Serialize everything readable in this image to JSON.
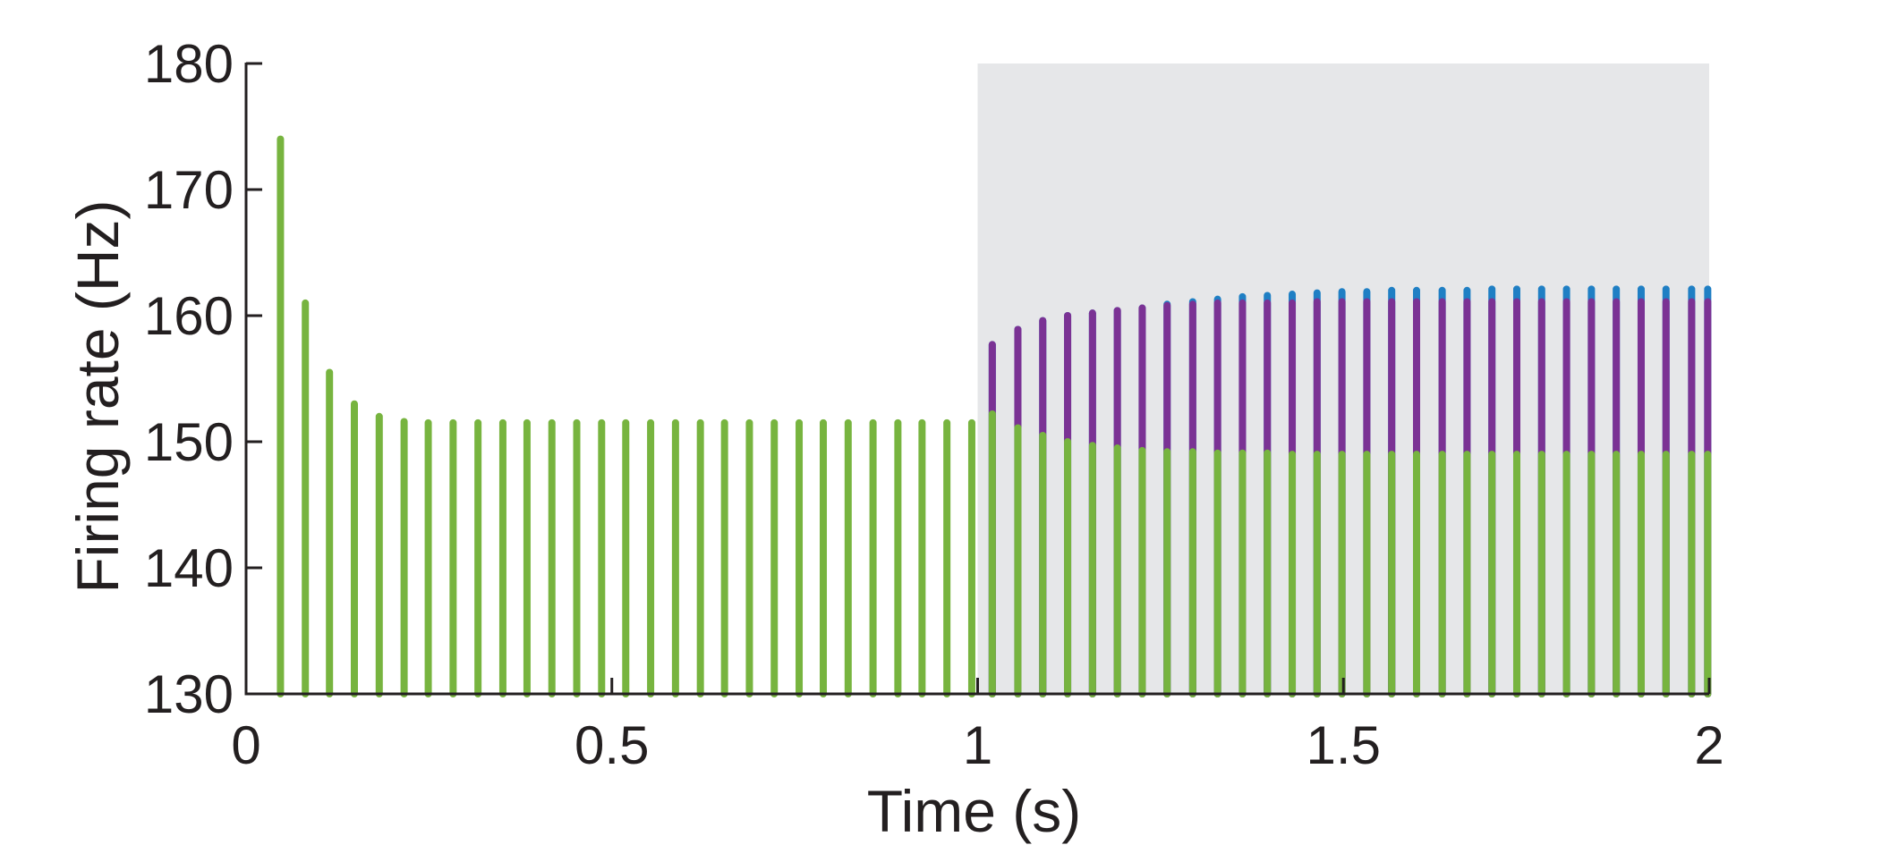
{
  "chart_data": {
    "type": "bar",
    "title": "",
    "xlabel": "Time (s)",
    "ylabel": "Firing rate (Hz)",
    "xlim": [
      0,
      2
    ],
    "ylim": [
      130,
      180
    ],
    "xticks": [
      "0",
      "0.5",
      "1",
      "1.5",
      "2"
    ],
    "yticks": [
      "130",
      "140",
      "150",
      "160",
      "170",
      "180"
    ],
    "grid": false,
    "legend": "none",
    "shaded_region": {
      "x_start": 1,
      "x_end": 2,
      "color": "#e6e7e9"
    },
    "colors": {
      "green": "#77b43f",
      "purple": "#7b3294",
      "blue": "#1f7fc4"
    },
    "phase1": {
      "x": [
        0.047,
        0.081,
        0.114,
        0.148,
        0.182,
        0.216,
        0.249,
        0.283,
        0.317,
        0.351,
        0.384,
        0.418,
        0.452,
        0.486,
        0.519,
        0.553,
        0.587,
        0.621,
        0.654,
        0.688,
        0.722,
        0.756,
        0.789,
        0.823,
        0.857,
        0.891,
        0.924,
        0.958,
        0.992
      ],
      "green": [
        174,
        161,
        155.5,
        153,
        152,
        151.6,
        151.5,
        151.5,
        151.5,
        151.5,
        151.5,
        151.5,
        151.5,
        151.5,
        151.5,
        151.5,
        151.5,
        151.5,
        151.5,
        151.5,
        151.5,
        151.5,
        151.5,
        151.5,
        151.5,
        151.5,
        151.5,
        151.5,
        151.5
      ]
    },
    "phase2": {
      "x": [
        1.02,
        1.055,
        1.089,
        1.123,
        1.157,
        1.191,
        1.225,
        1.259,
        1.294,
        1.328,
        1.362,
        1.396,
        1.43,
        1.464,
        1.498,
        1.532,
        1.566,
        1.6,
        1.635,
        1.669,
        1.703,
        1.737,
        1.771,
        1.805,
        1.839,
        1.873,
        1.907,
        1.941,
        1.976,
        1.998
      ],
      "green": [
        152.2,
        151.1,
        150.5,
        150,
        149.7,
        149.5,
        149.3,
        149.2,
        149.2,
        149.1,
        149.1,
        149.1,
        149,
        149,
        149,
        149,
        149,
        149,
        149,
        149,
        149,
        149,
        149,
        149,
        149,
        149,
        149,
        149,
        149,
        149
      ],
      "purple": [
        157.7,
        158.9,
        159.6,
        160,
        160.2,
        160.4,
        160.6,
        160.8,
        160.9,
        161,
        161,
        161,
        161,
        161.1,
        161.1,
        161.1,
        161.1,
        161.1,
        161.1,
        161.1,
        161.1,
        161.1,
        161.1,
        161.1,
        161.1,
        161.1,
        161.1,
        161.1,
        161.1,
        161.1
      ],
      "blue": [
        157.7,
        158.9,
        159.6,
        160,
        160.2,
        160.4,
        160.6,
        160.9,
        161.1,
        161.3,
        161.5,
        161.6,
        161.7,
        161.8,
        161.9,
        161.9,
        162,
        162,
        162,
        162,
        162.1,
        162.1,
        162.1,
        162.1,
        162.1,
        162.1,
        162.1,
        162.1,
        162.1,
        162.1
      ]
    }
  }
}
